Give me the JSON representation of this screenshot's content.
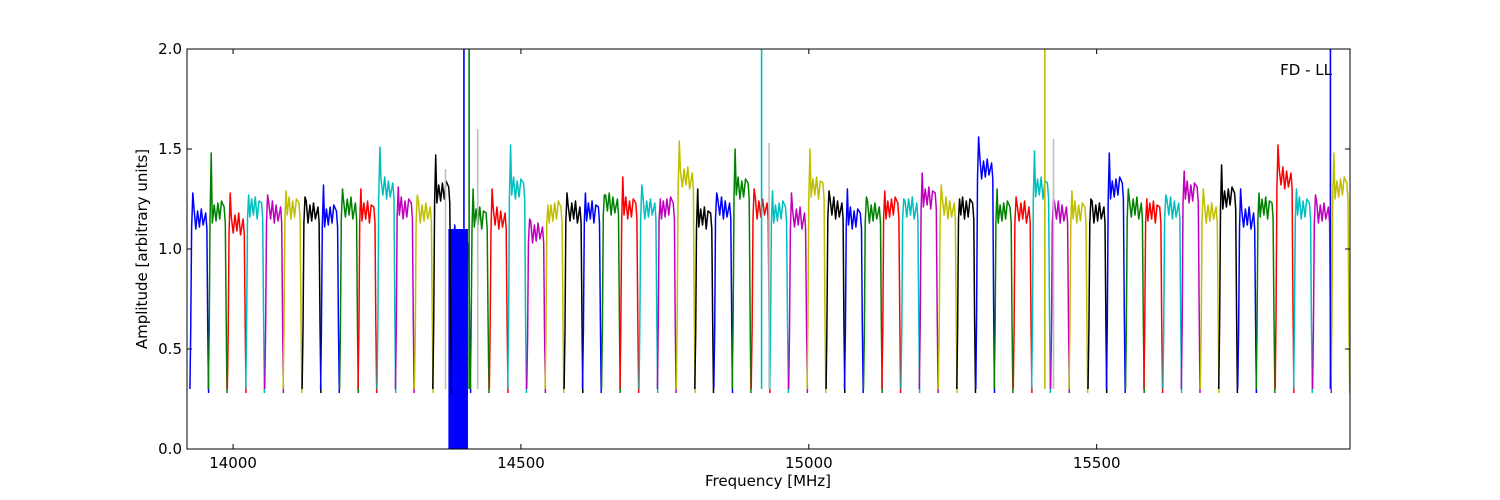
{
  "chart_data": {
    "type": "line",
    "title": "",
    "xlabel": "Frequency [MHz]",
    "ylabel": "Amplitude [arbitrary units]",
    "annotation": "FD - LL",
    "xlim": [
      13920,
      15940
    ],
    "ylim": [
      0,
      2.0
    ],
    "xticks": [
      14000,
      14500,
      15000,
      15500
    ],
    "yticks": [
      0.0,
      0.5,
      1.0,
      1.5,
      2.0
    ],
    "ytick_labels": [
      "0.0",
      "0.5",
      "1.0",
      "1.5",
      "2.0"
    ],
    "grid": false,
    "legend": "none",
    "band_width_mhz": 32.5,
    "band_floor": 0.28,
    "palette": [
      "#0000ff",
      "#008000",
      "#ff0000",
      "#00bfbf",
      "#bf00bf",
      "#bfbf00",
      "#000000"
    ],
    "bands": [
      {
        "start": 13925,
        "level": 1.15,
        "peak": 1.28,
        "color": "#0000ff"
      },
      {
        "start": 13957,
        "level": 1.18,
        "peak": 1.48,
        "color": "#008000"
      },
      {
        "start": 13990,
        "level": 1.12,
        "peak": 1.28,
        "color": "#ff0000"
      },
      {
        "start": 14022,
        "level": 1.2,
        "peak": 1.27,
        "color": "#00bfbf"
      },
      {
        "start": 14055,
        "level": 1.18,
        "peak": 1.27,
        "color": "#bf00bf"
      },
      {
        "start": 14087,
        "level": 1.2,
        "peak": 1.29,
        "color": "#bfbf00"
      },
      {
        "start": 14120,
        "level": 1.18,
        "peak": 1.26,
        "color": "#000000"
      },
      {
        "start": 14152,
        "level": 1.16,
        "peak": 1.32,
        "color": "#0000ff"
      },
      {
        "start": 14185,
        "level": 1.2,
        "peak": 1.3,
        "color": "#008000"
      },
      {
        "start": 14217,
        "level": 1.18,
        "peak": 1.3,
        "color": "#ff0000"
      },
      {
        "start": 14250,
        "level": 1.3,
        "peak": 1.51,
        "color": "#00bfbf"
      },
      {
        "start": 14282,
        "level": 1.2,
        "peak": 1.31,
        "color": "#bf00bf"
      },
      {
        "start": 14315,
        "level": 1.18,
        "peak": 1.27,
        "color": "#bfbf00"
      },
      {
        "start": 14347,
        "level": 1.28,
        "peak": 1.47,
        "color": "#000000"
      },
      {
        "start": 14380,
        "level": 1.0,
        "peak": 1.12,
        "color": "#0000ff"
      },
      {
        "start": 14412,
        "level": 1.15,
        "peak": 1.3,
        "color": "#008000"
      },
      {
        "start": 14445,
        "level": 1.15,
        "peak": 1.3,
        "color": "#ff0000"
      },
      {
        "start": 14477,
        "level": 1.3,
        "peak": 1.52,
        "color": "#00bfbf"
      },
      {
        "start": 14510,
        "level": 1.08,
        "peak": 1.15,
        "color": "#bf00bf"
      },
      {
        "start": 14542,
        "level": 1.18,
        "peak": 1.22,
        "color": "#bfbf00"
      },
      {
        "start": 14575,
        "level": 1.18,
        "peak": 1.28,
        "color": "#000000"
      },
      {
        "start": 14607,
        "level": 1.18,
        "peak": 1.28,
        "color": "#0000ff"
      },
      {
        "start": 14640,
        "level": 1.22,
        "peak": 1.27,
        "color": "#008000"
      },
      {
        "start": 14672,
        "level": 1.2,
        "peak": 1.36,
        "color": "#ff0000"
      },
      {
        "start": 14705,
        "level": 1.2,
        "peak": 1.32,
        "color": "#00bfbf"
      },
      {
        "start": 14737,
        "level": 1.2,
        "peak": 1.25,
        "color": "#bf00bf"
      },
      {
        "start": 14770,
        "level": 1.35,
        "peak": 1.54,
        "color": "#bfbf00"
      },
      {
        "start": 14802,
        "level": 1.15,
        "peak": 1.3,
        "color": "#000000"
      },
      {
        "start": 14835,
        "level": 1.2,
        "peak": 1.28,
        "color": "#0000ff"
      },
      {
        "start": 14867,
        "level": 1.3,
        "peak": 1.5,
        "color": "#008000"
      },
      {
        "start": 14900,
        "level": 1.2,
        "peak": 1.3,
        "color": "#ff0000"
      },
      {
        "start": 14932,
        "level": 1.18,
        "peak": 1.29,
        "color": "#00bfbf"
      },
      {
        "start": 14965,
        "level": 1.15,
        "peak": 1.28,
        "color": "#bf00bf"
      },
      {
        "start": 14997,
        "level": 1.3,
        "peak": 1.5,
        "color": "#bfbf00"
      },
      {
        "start": 15030,
        "level": 1.2,
        "peak": 1.29,
        "color": "#000000"
      },
      {
        "start": 15062,
        "level": 1.15,
        "peak": 1.3,
        "color": "#0000ff"
      },
      {
        "start": 15095,
        "level": 1.18,
        "peak": 1.26,
        "color": "#008000"
      },
      {
        "start": 15127,
        "level": 1.2,
        "peak": 1.29,
        "color": "#ff0000"
      },
      {
        "start": 15160,
        "level": 1.2,
        "peak": 1.25,
        "color": "#00bfbf"
      },
      {
        "start": 15192,
        "level": 1.25,
        "peak": 1.38,
        "color": "#bf00bf"
      },
      {
        "start": 15225,
        "level": 1.2,
        "peak": 1.32,
        "color": "#bfbf00"
      },
      {
        "start": 15257,
        "level": 1.2,
        "peak": 1.25,
        "color": "#000000"
      },
      {
        "start": 15290,
        "level": 1.4,
        "peak": 1.56,
        "color": "#0000ff"
      },
      {
        "start": 15322,
        "level": 1.18,
        "peak": 1.3,
        "color": "#008000"
      },
      {
        "start": 15355,
        "level": 1.18,
        "peak": 1.26,
        "color": "#ff0000"
      },
      {
        "start": 15387,
        "level": 1.3,
        "peak": 1.49,
        "color": "#00bfbf"
      },
      {
        "start": 15420,
        "level": 1.18,
        "peak": 1.25,
        "color": "#bf00bf"
      },
      {
        "start": 15452,
        "level": 1.18,
        "peak": 1.29,
        "color": "#bfbf00"
      },
      {
        "start": 15485,
        "level": 1.18,
        "peak": 1.25,
        "color": "#000000"
      },
      {
        "start": 15517,
        "level": 1.3,
        "peak": 1.48,
        "color": "#0000ff"
      },
      {
        "start": 15550,
        "level": 1.2,
        "peak": 1.3,
        "color": "#008000"
      },
      {
        "start": 15582,
        "level": 1.18,
        "peak": 1.25,
        "color": "#ff0000"
      },
      {
        "start": 15615,
        "level": 1.2,
        "peak": 1.27,
        "color": "#00bfbf"
      },
      {
        "start": 15647,
        "level": 1.28,
        "peak": 1.39,
        "color": "#bf00bf"
      },
      {
        "start": 15680,
        "level": 1.18,
        "peak": 1.3,
        "color": "#bfbf00"
      },
      {
        "start": 15712,
        "level": 1.25,
        "peak": 1.42,
        "color": "#000000"
      },
      {
        "start": 15745,
        "level": 1.15,
        "peak": 1.3,
        "color": "#0000ff"
      },
      {
        "start": 15777,
        "level": 1.2,
        "peak": 1.28,
        "color": "#008000"
      },
      {
        "start": 15810,
        "level": 1.35,
        "peak": 1.52,
        "color": "#ff0000"
      },
      {
        "start": 15842,
        "level": 1.2,
        "peak": 1.3,
        "color": "#00bfbf"
      },
      {
        "start": 15875,
        "level": 1.18,
        "peak": 1.27,
        "color": "#bf00bf"
      },
      {
        "start": 15907,
        "level": 1.3,
        "peak": 1.48,
        "color": "#bfbf00"
      }
    ],
    "spikes": [
      {
        "x": 14401,
        "y": 2.0,
        "color": "#0000ff"
      },
      {
        "x": 14410,
        "y": 2.0,
        "color": "#008000"
      },
      {
        "x": 14425,
        "y": 1.6,
        "color": "#bfbfbf"
      },
      {
        "x": 14369,
        "y": 1.4,
        "color": "#bfbfbf"
      },
      {
        "x": 14918,
        "y": 2.0,
        "color": "#00bfbf"
      },
      {
        "x": 14931,
        "y": 1.53,
        "color": "#bfbfbf"
      },
      {
        "x": 15410,
        "y": 2.0,
        "color": "#bfbf00"
      },
      {
        "x": 15425,
        "y": 1.55,
        "color": "#bfbfbf"
      },
      {
        "x": 15906,
        "y": 2.0,
        "color": "#0000ff"
      }
    ],
    "filled_region": {
      "x_start": 14374,
      "x_end": 14408,
      "y_from": 0.0,
      "y_to": 1.1,
      "color": "#0000ff"
    }
  }
}
